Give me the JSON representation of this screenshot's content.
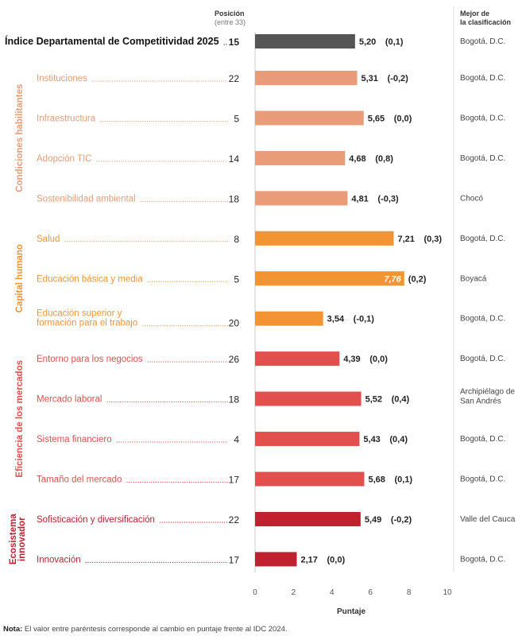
{
  "header": {
    "position_label": "Posición",
    "position_sub": "(entre 33)",
    "best_label_line1": "Mejor de",
    "best_label_line2": "la clasificación"
  },
  "note": {
    "prefix": "Nota:",
    "text": " El valor entre paréntesis corresponde al cambio en puntaje frente al IDC 2024."
  },
  "colors": {
    "index": "#555555",
    "condiciones": "#e89c78",
    "capital": "#f39434",
    "eficiencia": "#e1504d",
    "ecosistema": "#c1202e"
  },
  "chart_data": {
    "type": "bar",
    "orientation": "horizontal",
    "xlabel": "Puntaje",
    "xlim": [
      0,
      10
    ],
    "xticks": [
      0,
      2,
      4,
      6,
      8,
      10
    ],
    "title_row": {
      "label": "Índice Departamental de Competitividad 2025",
      "position": "15",
      "value": 5.2,
      "value_label": "5,20",
      "change": "(0,1)",
      "best": "Bogotá, D.C."
    },
    "groups": [
      {
        "name": "Condiciones habilitantes",
        "color_key": "condiciones",
        "rows": [
          {
            "label": [
              "Instituciones"
            ],
            "position": "22",
            "value": 5.31,
            "value_label": "5,31",
            "change": "(-0,2)",
            "best": [
              "Bogotá, D.C."
            ]
          },
          {
            "label": [
              "Infraestructura"
            ],
            "position": "5",
            "value": 5.65,
            "value_label": "5,65",
            "change": "(0,0)",
            "best": [
              "Bogotá, D.C."
            ]
          },
          {
            "label": [
              "Adopción TIC"
            ],
            "position": "14",
            "value": 4.68,
            "value_label": "4,68",
            "change": "(0,8)",
            "best": [
              "Bogotá, D.C."
            ]
          },
          {
            "label": [
              "Sostenibilidad ambiental"
            ],
            "position": "18",
            "value": 4.81,
            "value_label": "4,81",
            "change": "(-0,3)",
            "best": [
              "Chocó"
            ]
          }
        ]
      },
      {
        "name": "Capital humano",
        "color_key": "capital",
        "rows": [
          {
            "label": [
              "Salud"
            ],
            "position": "8",
            "value": 7.21,
            "value_label": "7,21",
            "change": "(0,3)",
            "best": [
              "Bogotá, D.C."
            ]
          },
          {
            "label": [
              "Educación básica y media"
            ],
            "position": "5",
            "value": 7.76,
            "value_label": "7,76",
            "change": "(0,2)",
            "best": [
              "Boyacá"
            ],
            "label_inside": true
          },
          {
            "label": [
              "Educación superior y",
              "formación para el trabajo"
            ],
            "position": "20",
            "value": 3.54,
            "value_label": "3,54",
            "change": "(-0,1)",
            "best": [
              "Bogotá, D.C."
            ]
          }
        ]
      },
      {
        "name": "Eficiencia de los mercados",
        "color_key": "eficiencia",
        "rows": [
          {
            "label": [
              "Entorno para los negocios"
            ],
            "position": "26",
            "value": 4.39,
            "value_label": "4,39",
            "change": "(0,0)",
            "best": [
              "Bogotá, D.C."
            ]
          },
          {
            "label": [
              "Mercado laboral"
            ],
            "position": "18",
            "value": 5.52,
            "value_label": "5,52",
            "change": "(0,4)",
            "best": [
              "Archipiélago de",
              "San Andrés"
            ]
          },
          {
            "label": [
              "Sistema financiero"
            ],
            "position": "4",
            "value": 5.43,
            "value_label": "5,43",
            "change": "(0,4)",
            "best": [
              "Bogotá, D.C."
            ]
          },
          {
            "label": [
              "Tamaño del mercado"
            ],
            "position": "17",
            "value": 5.68,
            "value_label": "5,68",
            "change": "(0,1)",
            "best": [
              "Bogotá, D.C."
            ]
          }
        ]
      },
      {
        "name": "Ecosistema innovador",
        "name_lines": [
          "Ecosistema",
          "innovador"
        ],
        "color_key": "ecosistema",
        "rows": [
          {
            "label": [
              "Sofisticación y diversificación"
            ],
            "position": "22",
            "value": 5.49,
            "value_label": "5,49",
            "change": "(-0,2)",
            "best": [
              "Valle del Cauca"
            ]
          },
          {
            "label": [
              "Innovación"
            ],
            "position": "17",
            "value": 2.17,
            "value_label": "2,17",
            "change": "(0,0)",
            "best": [
              "Bogotá, D.C."
            ]
          }
        ]
      }
    ]
  }
}
